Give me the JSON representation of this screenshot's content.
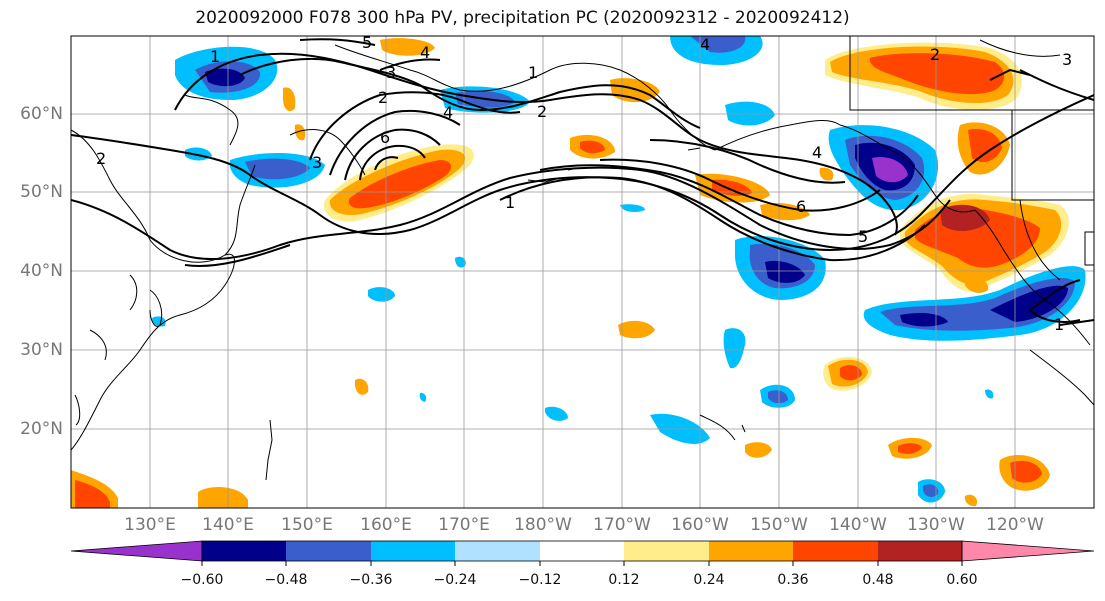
{
  "title": "2020092000 F078 300 hPa PV, precipitation PC (2020092312 - 2020092412)",
  "map": {
    "lat_labels": [
      "60°N",
      "50°N",
      "40°N",
      "30°N",
      "20°N"
    ],
    "lon_labels": [
      "130°E",
      "140°E",
      "150°E",
      "160°E",
      "170°E",
      "180°W",
      "170°W",
      "160°W",
      "150°W",
      "140°W",
      "130°W",
      "120°W"
    ],
    "contour_labels": [
      "1",
      "2",
      "3",
      "4",
      "5",
      "6"
    ]
  },
  "colorbar": {
    "ticks": [
      "−0.60",
      "−0.48",
      "−0.36",
      "−0.24",
      "−0.12",
      "0.12",
      "0.24",
      "0.36",
      "0.48",
      "0.60"
    ],
    "colors": [
      "#9932cc",
      "#00008b",
      "#3a5fcd",
      "#00bfff",
      "#b0e2ff",
      "#ffffff",
      "#ffec8b",
      "#ffa500",
      "#ff4500",
      "#b22222",
      "#ff88aa"
    ]
  }
}
